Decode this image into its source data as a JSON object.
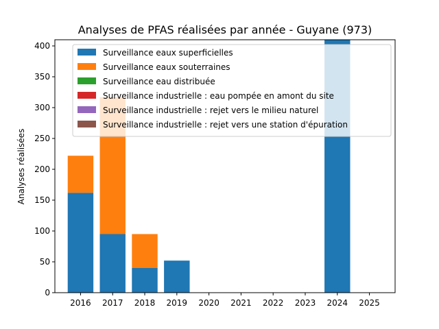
{
  "chart_data": {
    "type": "bar",
    "stacked": true,
    "title": "Analyses de PFAS réalisées par année - Guyane (973)",
    "xlabel": "",
    "ylabel": "Analyses réalisées",
    "categories": [
      "2016",
      "2017",
      "2018",
      "2019",
      "2020",
      "2021",
      "2022",
      "2023",
      "2024",
      "2025"
    ],
    "ylim": [
      0,
      410
    ],
    "yticks": [
      0,
      50,
      100,
      150,
      200,
      250,
      300,
      350,
      400
    ],
    "grid": false,
    "legend_position": "top",
    "series": [
      {
        "name": "Surveillance eaux superficielles",
        "color": "#1f77b4",
        "values": [
          162,
          95,
          40,
          52,
          0,
          0,
          0,
          0,
          410,
          0
        ]
      },
      {
        "name": "Surveillance eaux souterraines",
        "color": "#ff7f0e",
        "values": [
          60,
          222,
          55,
          0,
          0,
          0,
          0,
          0,
          0,
          0
        ]
      },
      {
        "name": "Surveillance eau distribuée",
        "color": "#2ca02c",
        "values": [
          0,
          0,
          0,
          0,
          0,
          0,
          0,
          0,
          0,
          0
        ]
      },
      {
        "name": "Surveillance industrielle : eau pompée en amont du site",
        "color": "#d62728",
        "values": [
          0,
          0,
          0,
          0,
          0,
          0,
          0,
          0,
          0,
          0
        ]
      },
      {
        "name": "Surveillance industrielle : rejet vers le milieu naturel",
        "color": "#9467bd",
        "values": [
          0,
          0,
          0,
          0,
          0,
          0,
          0,
          0,
          0,
          0
        ]
      },
      {
        "name": "Surveillance industrielle : rejet vers une station d'épuration",
        "color": "#8c564b",
        "values": [
          0,
          0,
          0,
          0,
          0,
          0,
          0,
          0,
          0,
          0
        ]
      }
    ]
  }
}
